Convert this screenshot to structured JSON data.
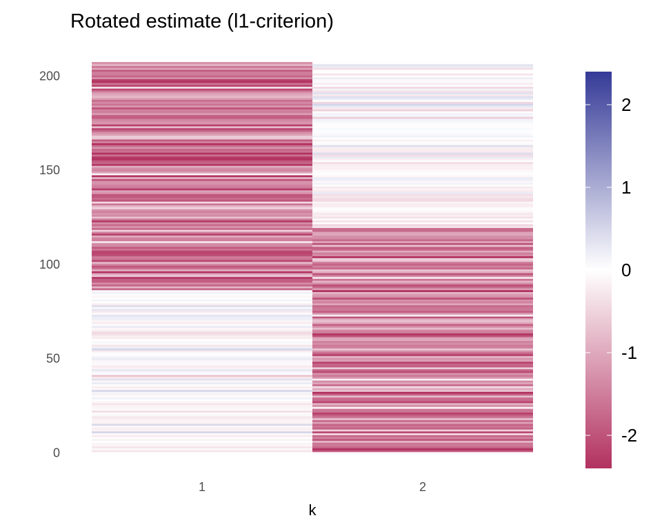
{
  "chart_data": {
    "type": "heatmap",
    "title": "Rotated estimate (l1-criterion)",
    "xlabel": "k",
    "ylabel": "",
    "x_categories": [
      "1",
      "2"
    ],
    "y_range": [
      1,
      207
    ],
    "y_ticks": [
      "0",
      "50",
      "100",
      "150",
      "200"
    ],
    "colorbar": {
      "range": [
        -2.4,
        2.4
      ],
      "ticks": [
        "-2",
        "-1",
        "0",
        "1",
        "2"
      ],
      "low_color": "#B2315F",
      "mid_color": "#FFFFFF",
      "high_color": "#353A97"
    },
    "legend_position": "right",
    "grid": false,
    "columns": [
      {
        "k": "1",
        "segments": [
          {
            "rows": [
              1,
              86
            ],
            "mean": 0.0,
            "spread": 0.25,
            "seed": 11
          },
          {
            "rows": [
              87,
              207
            ],
            "mean": -1.45,
            "spread": 0.55,
            "seed": 23
          }
        ]
      },
      {
        "k": "2",
        "segments": [
          {
            "rows": [
              1,
              120
            ],
            "mean": -1.4,
            "spread": 0.55,
            "seed": 37
          },
          {
            "rows": [
              121,
              207
            ],
            "mean": -0.05,
            "spread": 0.22,
            "seed": 53
          }
        ]
      }
    ]
  }
}
